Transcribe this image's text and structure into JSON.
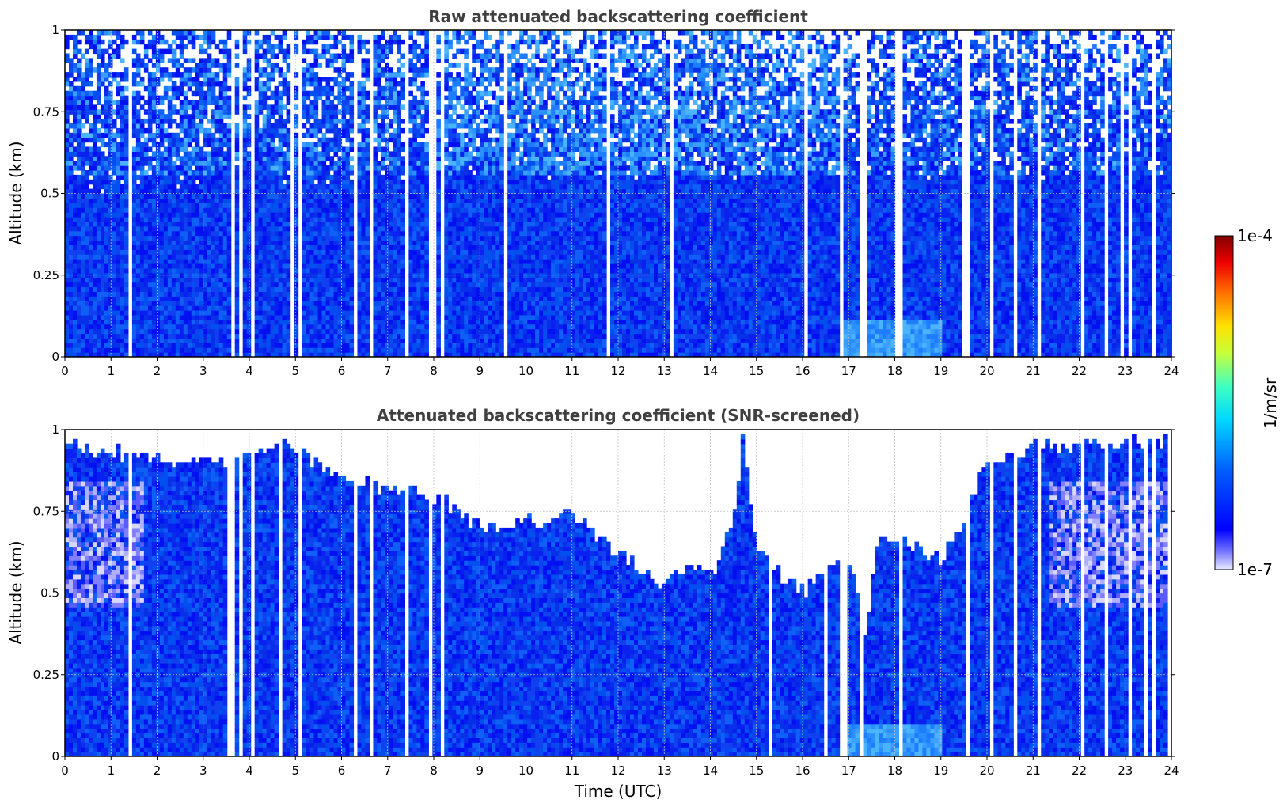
{
  "chart_data": [
    {
      "type": "heatmap",
      "title": "Raw attenuated backscattering coefficient",
      "xlabel": "",
      "ylabel": "Altitude (km)",
      "xlim": [
        0,
        24
      ],
      "ylim": [
        0,
        1
      ],
      "xticks": [
        "0",
        "1",
        "2",
        "3",
        "4",
        "5",
        "6",
        "7",
        "8",
        "9",
        "10",
        "11",
        "12",
        "13",
        "14",
        "15",
        "16",
        "17",
        "18",
        "19",
        "20",
        "21",
        "22",
        "23",
        "24"
      ],
      "yticks": [
        "0",
        "0.25",
        "0.5",
        "0.75",
        "1"
      ],
      "grid": true,
      "missing_data_columns_utc": [
        1.45,
        3.65,
        3.85,
        4.05,
        5.1,
        6.3,
        6.65,
        7.4,
        7.9,
        8.2,
        16.85,
        17.25,
        18.1,
        18.6,
        19.2,
        19.6,
        20.1,
        20.6,
        21.1,
        21.6,
        22.1,
        22.6,
        23.1,
        23.6
      ],
      "profile_note": "",
      "colorscale": "log",
      "cmin": "1e-7",
      "cmax": "1e-4"
    },
    {
      "type": "heatmap",
      "title": "Attenuated backscattering coefficient (SNR-screened)",
      "xlabel": "Time (UTC)",
      "ylabel": "Altitude (km)",
      "xlim": [
        0,
        24
      ],
      "ylim": [
        0,
        1
      ],
      "xticks": [
        "0",
        "1",
        "2",
        "3",
        "4",
        "5",
        "6",
        "7",
        "8",
        "9",
        "10",
        "11",
        "12",
        "13",
        "14",
        "15",
        "16",
        "17",
        "18",
        "19",
        "20",
        "21",
        "22",
        "23",
        "24"
      ],
      "yticks": [
        "0",
        "0.25",
        "0.5",
        "0.75",
        "1"
      ],
      "grid": true,
      "screened_top_km": [
        [
          0,
          0.95
        ],
        [
          1,
          0.93
        ],
        [
          2,
          0.92
        ],
        [
          3,
          0.9
        ],
        [
          4,
          0.92
        ],
        [
          5,
          0.95
        ],
        [
          6,
          0.85
        ],
        [
          7,
          0.82
        ],
        [
          8,
          0.8
        ],
        [
          9,
          0.7
        ],
        [
          10,
          0.72
        ],
        [
          11,
          0.75
        ],
        [
          12,
          0.62
        ],
        [
          12.5,
          0.58
        ],
        [
          13,
          0.52
        ],
        [
          13.5,
          0.6
        ],
        [
          14,
          0.55
        ],
        [
          14.5,
          0.72
        ],
        [
          14.7,
          0.98
        ],
        [
          15,
          0.65
        ],
        [
          15.5,
          0.55
        ],
        [
          16,
          0.5
        ],
        [
          16.5,
          0.55
        ],
        [
          17,
          0.6
        ],
        [
          17.4,
          0.35
        ],
        [
          17.6,
          0.65
        ],
        [
          18,
          0.68
        ],
        [
          19,
          0.6
        ],
        [
          19.5,
          0.72
        ],
        [
          20,
          0.9
        ],
        [
          21,
          0.95
        ],
        [
          22,
          0.95
        ],
        [
          23,
          0.96
        ],
        [
          24,
          0.96
        ]
      ]
    }
  ],
  "colorbar": {
    "label": "1/m/sr",
    "max_label": "1e-4",
    "min_label": "1e-7",
    "colormap": "jet"
  },
  "colors": {
    "dominant_blue": "#0a1ef0",
    "light_blue": "#1e8cff",
    "background": "#ffffff"
  }
}
